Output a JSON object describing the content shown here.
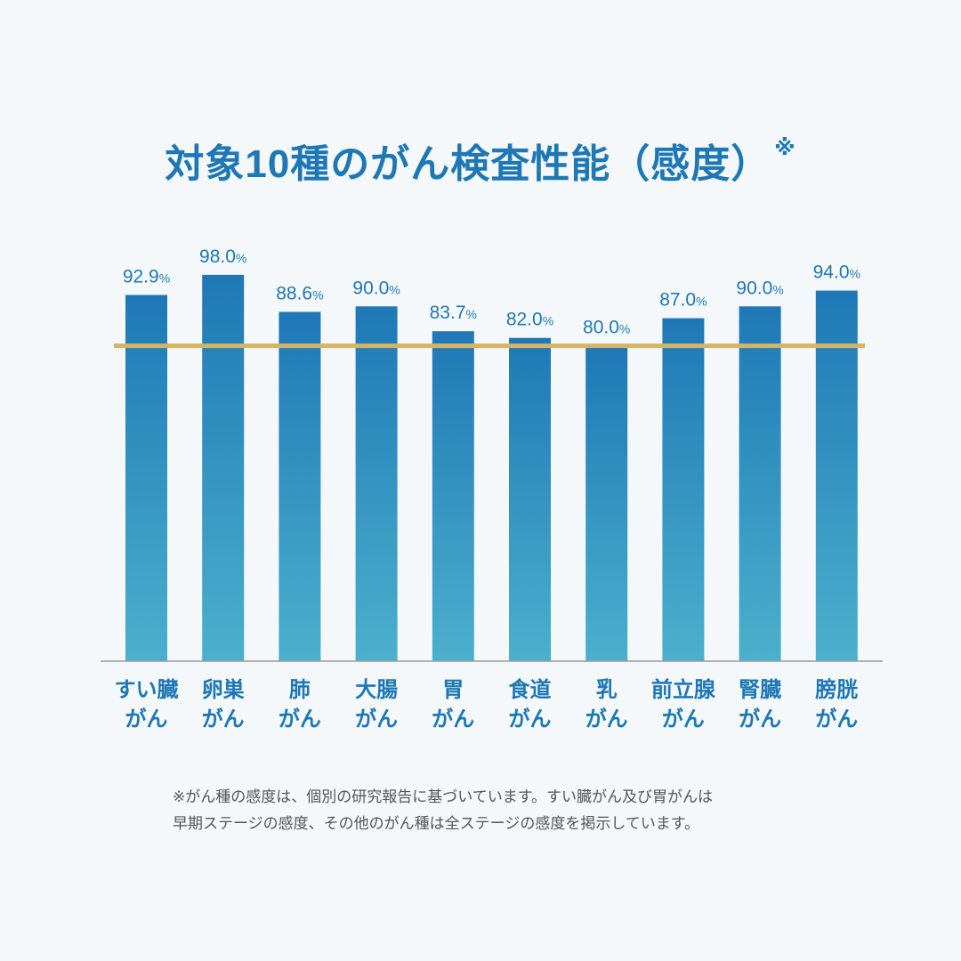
{
  "chart_data": {
    "type": "bar",
    "title": "対象10種のがん検査性能（感度）",
    "title_mark": "※",
    "categories": [
      [
        "すい臓",
        "がん"
      ],
      [
        "卵巣",
        "がん"
      ],
      [
        "肺",
        "がん"
      ],
      [
        "大腸",
        "がん"
      ],
      [
        "胃",
        "がん"
      ],
      [
        "食道",
        "がん"
      ],
      [
        "乳",
        "がん"
      ],
      [
        "前立腺",
        "がん"
      ],
      [
        "腎臓",
        "がん"
      ],
      [
        "膀胱",
        "がん"
      ]
    ],
    "values": [
      92.9,
      98.0,
      88.6,
      90.0,
      83.7,
      82.0,
      80.0,
      87.0,
      90.0,
      94.0
    ],
    "value_suffix": "%",
    "reference_line": 80,
    "xlabel": "",
    "ylabel": "",
    "ylim": [
      0,
      100
    ],
    "grid": false,
    "colors": {
      "bar_top": "#1f78b6",
      "bar_bottom": "#4bb0cc",
      "reference": "#d6b466",
      "text": "#1d78b5",
      "axis": "#999999"
    }
  },
  "footnote": [
    "※がん種の感度は、個別の研究報告に基づいています。すい臓がん及び胃がんは",
    "早期ステージの感度、その他のがん種は全ステージの感度を掲示しています。"
  ]
}
